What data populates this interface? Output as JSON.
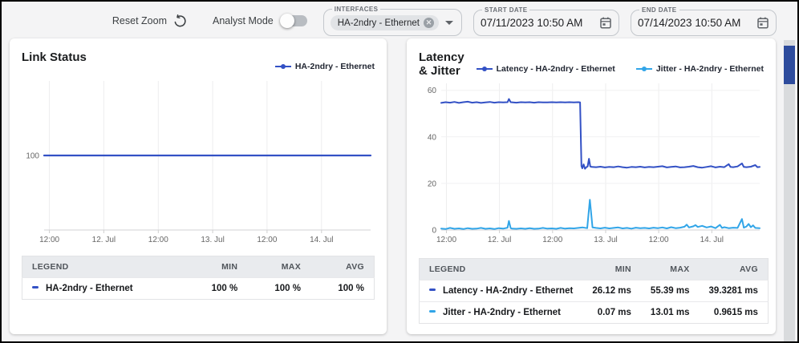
{
  "toolbar": {
    "reset_zoom_label": "Reset Zoom",
    "analyst_mode_label": "Analyst Mode",
    "analyst_mode_on": false,
    "interfaces": {
      "label": "INTERFACES",
      "chip": "HA-2ndry - Ethernet"
    },
    "start_date": {
      "label": "START DATE",
      "value": "07/11/2023 10:50 AM"
    },
    "end_date": {
      "label": "END DATE",
      "value": "07/14/2023 10:50 AM"
    }
  },
  "colors": {
    "series_dark_blue": "#3351c5",
    "series_light_blue": "#31a5e8",
    "scrollbar_thumb": "#2d4b9c",
    "table_header_bg": "#e9ebee"
  },
  "chart_data": [
    {
      "type": "line",
      "title": "Link Status",
      "xlim": [
        0,
        72
      ],
      "ylim": [
        99,
        101
      ],
      "grid": true,
      "legend_position": "top-right",
      "xticks": [
        {
          "h": 1.17,
          "label": "12:00"
        },
        {
          "h": 13.17,
          "label": "12. Jul"
        },
        {
          "h": 25.17,
          "label": "12:00"
        },
        {
          "h": 37.17,
          "label": "13. Jul"
        },
        {
          "h": 49.17,
          "label": "12:00"
        },
        {
          "h": 61.17,
          "label": "14. Jul"
        }
      ],
      "yticks": [
        {
          "v": 100,
          "label": "100"
        }
      ],
      "legend": [
        {
          "name": "HA-2ndry - Ethernet",
          "color": "#3351c5"
        }
      ],
      "series": [
        {
          "name": "HA-2ndry - Ethernet",
          "color": "#3351c5",
          "width": 2.2,
          "points": [
            [
              0,
              100
            ],
            [
              72,
              100
            ]
          ]
        }
      ],
      "table": {
        "headers": [
          "LEGEND",
          "MIN",
          "MAX",
          "AVG"
        ],
        "rows": [
          {
            "marker_color": "#3351c5",
            "label": "HA-2ndry - Ethernet",
            "min": "100 %",
            "max": "100 %",
            "avg": "100 %"
          }
        ]
      }
    },
    {
      "type": "line",
      "title": "Latency & Jitter",
      "xlim": [
        0,
        72
      ],
      "ylim": [
        0,
        63
      ],
      "grid": true,
      "legend_position": "top-right",
      "xticks": [
        {
          "h": 1.17,
          "label": "12:00"
        },
        {
          "h": 13.17,
          "label": "12. Jul"
        },
        {
          "h": 25.17,
          "label": "12:00"
        },
        {
          "h": 37.17,
          "label": "13. Jul"
        },
        {
          "h": 49.17,
          "label": "12:00"
        },
        {
          "h": 61.17,
          "label": "14. Jul"
        }
      ],
      "yticks": [
        {
          "v": 0,
          "label": "0"
        },
        {
          "v": 20,
          "label": "20"
        },
        {
          "v": 40,
          "label": "40"
        },
        {
          "v": 60,
          "label": "60"
        }
      ],
      "legend": [
        {
          "name": "Latency - HA-2ndry - Ethernet",
          "color": "#3351c5"
        },
        {
          "name": "Jitter - HA-2ndry - Ethernet",
          "color": "#31a5e8"
        }
      ],
      "series": [
        {
          "name": "Latency - HA-2ndry - Ethernet",
          "color": "#3351c5",
          "width": 2,
          "points": [
            [
              0,
              54.6
            ],
            [
              1,
              54.9
            ],
            [
              2,
              54.7
            ],
            [
              3,
              55.0
            ],
            [
              4,
              54.6
            ],
            [
              5,
              54.9
            ],
            [
              6,
              55.1
            ],
            [
              7,
              54.7
            ],
            [
              8,
              54.9
            ],
            [
              9,
              54.6
            ],
            [
              10,
              54.8
            ],
            [
              11,
              55.0
            ],
            [
              12,
              54.7
            ],
            [
              13,
              54.9
            ],
            [
              14,
              54.8
            ],
            [
              15,
              54.9
            ],
            [
              15.3,
              56.3
            ],
            [
              15.7,
              54.9
            ],
            [
              17,
              54.7
            ],
            [
              18,
              54.9
            ],
            [
              19,
              54.8
            ],
            [
              20,
              54.9
            ],
            [
              21,
              54.7
            ],
            [
              22,
              54.9
            ],
            [
              23,
              54.8
            ],
            [
              24,
              54.8
            ],
            [
              25,
              54.9
            ],
            [
              26,
              54.8
            ],
            [
              27,
              54.9
            ],
            [
              28,
              54.8
            ],
            [
              29,
              54.9
            ],
            [
              30,
              54.8
            ],
            [
              31,
              54.9
            ],
            [
              31.4,
              54.8
            ],
            [
              31.7,
              27.5
            ],
            [
              31.9,
              26.5
            ],
            [
              32.2,
              28.2
            ],
            [
              32.5,
              26.3
            ],
            [
              32.8,
              27.0
            ],
            [
              33.1,
              27.3
            ],
            [
              33.4,
              30.6
            ],
            [
              33.7,
              27.3
            ],
            [
              34,
              27.1
            ],
            [
              35,
              27.0
            ],
            [
              36,
              27.2
            ],
            [
              37,
              26.9
            ],
            [
              38,
              27.1
            ],
            [
              39,
              27.0
            ],
            [
              40,
              27.3
            ],
            [
              41,
              27.0
            ],
            [
              42,
              26.8
            ],
            [
              43,
              27.1
            ],
            [
              44,
              27.0
            ],
            [
              45,
              27.2
            ],
            [
              46,
              26.9
            ],
            [
              47,
              27.1
            ],
            [
              48,
              27.0
            ],
            [
              49,
              27.2
            ],
            [
              50,
              27.4
            ],
            [
              51,
              26.9
            ],
            [
              52,
              27.1
            ],
            [
              53,
              27.3
            ],
            [
              54,
              26.9
            ],
            [
              55,
              27.0
            ],
            [
              56,
              27.2
            ],
            [
              57,
              27.5
            ],
            [
              58,
              27.0
            ],
            [
              59,
              26.8
            ],
            [
              60,
              27.1
            ],
            [
              61,
              27.4
            ],
            [
              62,
              26.9
            ],
            [
              63,
              27.2
            ],
            [
              64,
              27.0
            ],
            [
              65,
              28.3
            ],
            [
              65.4,
              27.1
            ],
            [
              66,
              27.0
            ],
            [
              67,
              27.3
            ],
            [
              68,
              28.6
            ],
            [
              68.4,
              27.1
            ],
            [
              69,
              27.0
            ],
            [
              70,
              27.2
            ],
            [
              71,
              27.9
            ],
            [
              71.5,
              27.0
            ],
            [
              72,
              27.1
            ]
          ]
        },
        {
          "name": "Jitter - HA-2ndry - Ethernet",
          "color": "#31a5e8",
          "width": 2,
          "points": [
            [
              0,
              0.6
            ],
            [
              1,
              0.4
            ],
            [
              2,
              0.9
            ],
            [
              3,
              0.5
            ],
            [
              4,
              0.7
            ],
            [
              5,
              0.4
            ],
            [
              6,
              0.8
            ],
            [
              7,
              0.5
            ],
            [
              8,
              0.6
            ],
            [
              9,
              0.9
            ],
            [
              10,
              0.5
            ],
            [
              11,
              0.7
            ],
            [
              12,
              0.4
            ],
            [
              13,
              0.8
            ],
            [
              14,
              0.6
            ],
            [
              15,
              1.0
            ],
            [
              15.3,
              3.9
            ],
            [
              15.7,
              0.8
            ],
            [
              16,
              0.6
            ],
            [
              17,
              0.5
            ],
            [
              18,
              0.7
            ],
            [
              19,
              0.5
            ],
            [
              20,
              0.8
            ],
            [
              21,
              0.5
            ],
            [
              22,
              0.6
            ],
            [
              23,
              0.9
            ],
            [
              24,
              0.6
            ],
            [
              25,
              0.7
            ],
            [
              26,
              0.5
            ],
            [
              27,
              0.9
            ],
            [
              28,
              0.6
            ],
            [
              29,
              0.8
            ],
            [
              30,
              0.7
            ],
            [
              31,
              0.9
            ],
            [
              32,
              1.1
            ],
            [
              33,
              0.8
            ],
            [
              33.6,
              13.0
            ],
            [
              34.2,
              1.1
            ],
            [
              35,
              0.9
            ],
            [
              36,
              0.7
            ],
            [
              37,
              1.0
            ],
            [
              38,
              0.7
            ],
            [
              39,
              0.9
            ],
            [
              40,
              1.1
            ],
            [
              41,
              0.7
            ],
            [
              42,
              0.9
            ],
            [
              43,
              0.6
            ],
            [
              44,
              1.0
            ],
            [
              45,
              0.8
            ],
            [
              46,
              0.9
            ],
            [
              47,
              0.7
            ],
            [
              48,
              1.0
            ],
            [
              49,
              0.8
            ],
            [
              50,
              1.1
            ],
            [
              51,
              0.7
            ],
            [
              52,
              1.2
            ],
            [
              53,
              0.8
            ],
            [
              54,
              1.0
            ],
            [
              55,
              1.4
            ],
            [
              55.5,
              2.3
            ],
            [
              56,
              1.1
            ],
            [
              57,
              1.6
            ],
            [
              57.5,
              2.1
            ],
            [
              58,
              1.3
            ],
            [
              59,
              1.8
            ],
            [
              60,
              1.1
            ],
            [
              61,
              1.5
            ],
            [
              62,
              0.8
            ],
            [
              63,
              2.2
            ],
            [
              63.5,
              0.9
            ],
            [
              64,
              1.2
            ],
            [
              65,
              0.8
            ],
            [
              66,
              1.0
            ],
            [
              67,
              0.9
            ],
            [
              68,
              4.7
            ],
            [
              68.4,
              1.0
            ],
            [
              69,
              1.5
            ],
            [
              69.5,
              2.6
            ],
            [
              70,
              1.2
            ],
            [
              70.5,
              2.0
            ],
            [
              71,
              0.9
            ],
            [
              72,
              0.8
            ]
          ]
        }
      ],
      "table": {
        "headers": [
          "LEGEND",
          "MIN",
          "MAX",
          "AVG"
        ],
        "rows": [
          {
            "marker_color": "#3351c5",
            "label": "Latency - HA-2ndry - Ethernet",
            "min": "26.12 ms",
            "max": "55.39 ms",
            "avg": "39.3281 ms"
          },
          {
            "marker_color": "#31a5e8",
            "label": "Jitter - HA-2ndry - Ethernet",
            "min": "0.07 ms",
            "max": "13.01 ms",
            "avg": "0.9615 ms"
          }
        ]
      }
    }
  ]
}
